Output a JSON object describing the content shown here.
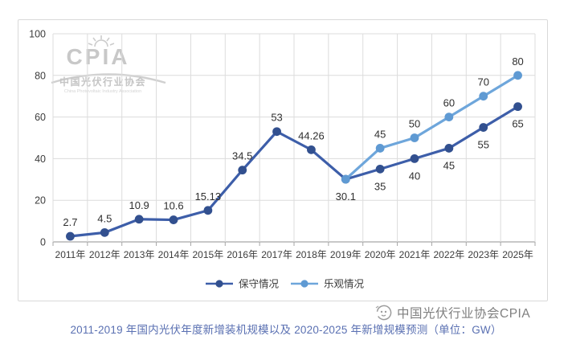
{
  "watermark_logo": {
    "acronym": "CPIA",
    "name_cn": "中国光伏行业协会",
    "name_en": "China Photovoltaic Industry Association",
    "color": "#c8c8c8"
  },
  "chart_data": {
    "type": "line",
    "unit": "GW",
    "categories": [
      "2011年",
      "2012年",
      "2013年",
      "2014年",
      "2015年",
      "2016年",
      "2017年",
      "2018年",
      "2019年",
      "2020年",
      "2021年",
      "2022年",
      "2023年",
      "2025年"
    ],
    "y_ticks": [
      0,
      20,
      40,
      60,
      80,
      100
    ],
    "ylim": [
      0,
      100
    ],
    "grid": "horizontal+vertical",
    "legend_position": "bottom",
    "colors": {
      "grid": "#dcdcdc",
      "axis": "#a6a6a6",
      "tick_label": "#3c3c3c",
      "data_label": "#2f2f2f",
      "legend_text": "#3a3a3a"
    },
    "series": [
      {
        "name": "保守情况",
        "line_color": "#3d5ea9",
        "marker_color": "#32508f",
        "values": [
          2.7,
          4.5,
          10.9,
          10.6,
          15.13,
          34.5,
          53,
          44.26,
          30.1,
          35,
          40,
          45,
          55,
          65
        ],
        "labels": [
          "2.7",
          "4.5",
          "10.9",
          "10.6",
          "15.13",
          "34.5",
          "53",
          "44.26",
          "30.1",
          "35",
          "40",
          "45",
          "55",
          "65"
        ],
        "label_side": [
          "above",
          "above",
          "above",
          "above",
          "above",
          "above",
          "above",
          "above",
          "below",
          "below",
          "below",
          "below",
          "below",
          "below"
        ]
      },
      {
        "name": "乐观情况",
        "line_color": "#6ea6db",
        "marker_color": "#5f9ad3",
        "values": [
          null,
          null,
          null,
          null,
          null,
          null,
          null,
          null,
          30.1,
          45,
          50,
          60,
          70,
          80
        ],
        "labels": [
          null,
          null,
          null,
          null,
          null,
          null,
          null,
          null,
          null,
          "45",
          "50",
          "60",
          "70",
          "80"
        ],
        "label_side": [
          null,
          null,
          null,
          null,
          null,
          null,
          null,
          null,
          null,
          "above",
          "above",
          "above",
          "above",
          "above"
        ]
      }
    ],
    "legend": [
      {
        "label": "保守情况",
        "line_color": "#3d5ea9",
        "marker_color": "#32508f"
      },
      {
        "label": "乐观情况",
        "line_color": "#6ea6db",
        "marker_color": "#5f9ad3"
      }
    ]
  },
  "caption": {
    "text": "2011-2019 年国内光伏年度新增装机规模以及 2020-2025 年新增规模预测（单位：GW）",
    "color": "#5a70b2"
  },
  "footer_watermark": {
    "text": "中国光伏行业协会CPIA"
  }
}
